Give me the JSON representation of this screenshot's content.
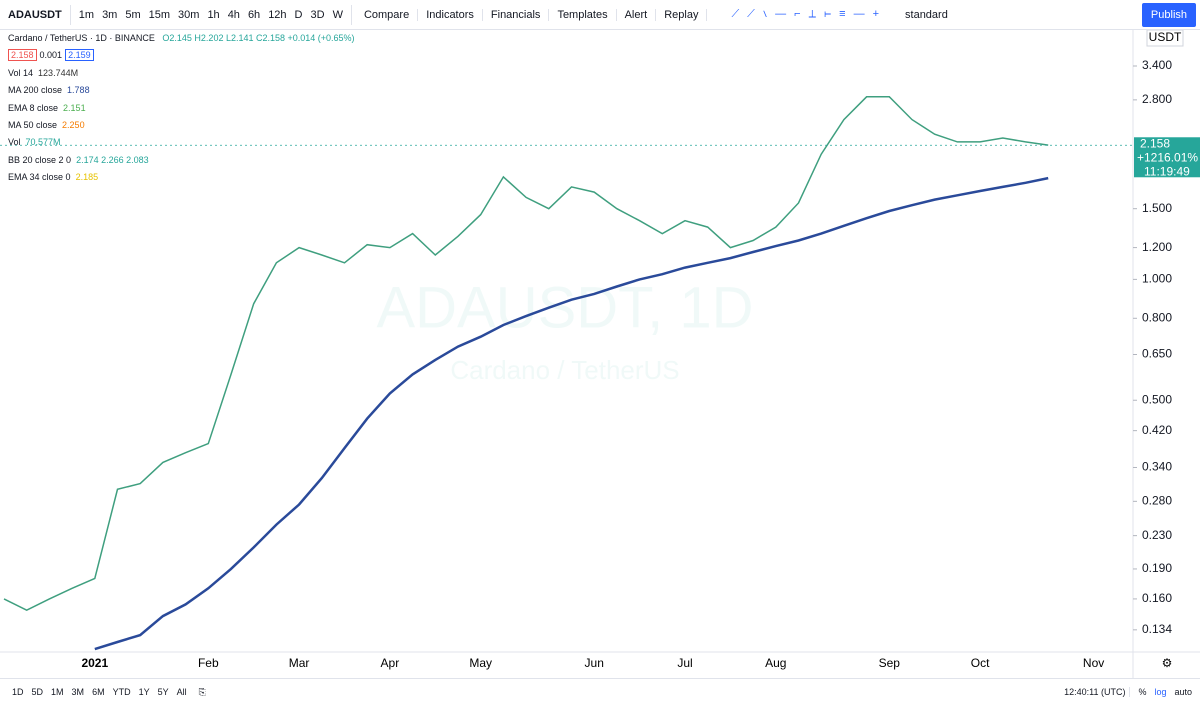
{
  "toolbar": {
    "symbol": "ADAUSDT",
    "intervals": [
      "1m",
      "3m",
      "5m",
      "15m",
      "30m",
      "1h",
      "4h",
      "6h",
      "12h",
      "D",
      "3D",
      "W"
    ],
    "buttons": [
      "Compare",
      "Indicators",
      "Financials",
      "Templates",
      "Alert",
      "Replay"
    ],
    "layout": "standard",
    "publish": "Publish"
  },
  "legend": {
    "title": "Cardano / TetherUS · 1D · BINANCE",
    "ohlc": "O2.145 H2.202 L2.141 C2.158 +0.014 (+0.65%)",
    "bid": "2.158",
    "spread": "0.001",
    "ask": "2.159",
    "indicators": [
      {
        "name": "Vol 14",
        "value": "123.744M",
        "color": "#333333"
      },
      {
        "name": "MA 200 close",
        "value": "1.788",
        "color": "#2a4a9a"
      },
      {
        "name": "EMA 8 close",
        "value": "2.151",
        "color": "#4caf50"
      },
      {
        "name": "MA 50 close",
        "value": "2.250",
        "color": "#f57c00"
      },
      {
        "name": "Vol",
        "value": "70.577M",
        "color": "#26a69a"
      },
      {
        "name": "BB 20 close 2 0",
        "value": "2.174 2.266 2.083",
        "color": "#26a69a"
      },
      {
        "name": "EMA 34 close 0",
        "value": "2.185",
        "color": "#e6c200"
      }
    ]
  },
  "watermark": {
    "symbol": "ADAUSDT, 1D",
    "description": "Cardano / TetherUS"
  },
  "chart_data": {
    "type": "line",
    "log_scale": true,
    "grid": false,
    "currency": "USDT",
    "categories": [
      null,
      null,
      null,
      null,
      "2021",
      null,
      null,
      null,
      null,
      "Feb",
      null,
      null,
      null,
      "Mar",
      null,
      null,
      null,
      "Apr",
      null,
      null,
      null,
      "May",
      null,
      null,
      null,
      null,
      "Jun",
      null,
      null,
      null,
      "Jul",
      null,
      null,
      null,
      "Aug",
      null,
      null,
      null,
      null,
      "Sep",
      null,
      null,
      null,
      "Oct",
      null,
      null,
      null,
      null,
      "Nov"
    ],
    "series": [
      {
        "name": "ADAUSDT",
        "color": "#3f9f7f",
        "values": [
          0.16,
          0.15,
          0.16,
          0.17,
          0.18,
          0.3,
          0.31,
          0.35,
          0.37,
          0.39,
          0.58,
          0.87,
          1.1,
          1.2,
          1.15,
          1.1,
          1.22,
          1.2,
          1.3,
          1.15,
          1.28,
          1.45,
          1.8,
          1.6,
          1.5,
          1.7,
          1.65,
          1.5,
          1.4,
          1.3,
          1.4,
          1.35,
          1.2,
          1.25,
          1.35,
          1.55,
          2.05,
          2.5,
          2.85,
          2.85,
          2.5,
          2.3,
          2.2,
          2.2,
          2.25,
          2.2,
          2.16,
          null,
          null
        ]
      },
      {
        "name": "MA 200 close",
        "color": "#2a4a9a",
        "values": [
          null,
          null,
          null,
          null,
          0.12,
          0.125,
          0.13,
          0.145,
          0.155,
          0.17,
          0.19,
          0.215,
          0.245,
          0.275,
          0.32,
          0.38,
          0.45,
          0.52,
          0.58,
          0.63,
          0.68,
          0.72,
          0.77,
          0.81,
          0.85,
          0.89,
          0.92,
          0.96,
          1.0,
          1.03,
          1.07,
          1.1,
          1.13,
          1.17,
          1.21,
          1.25,
          1.3,
          1.36,
          1.42,
          1.48,
          1.53,
          1.58,
          1.62,
          1.66,
          1.7,
          1.74,
          1.788,
          null,
          null
        ]
      }
    ],
    "ylim": [
      0.118,
      4.18
    ],
    "yticks": [
      {
        "value": 3.4,
        "label": "3.400"
      },
      {
        "value": 2.8,
        "label": "2.800"
      },
      {
        "value": 1.5,
        "label": "1.500"
      },
      {
        "value": 1.2,
        "label": "1.200"
      },
      {
        "value": 1.0,
        "label": "1.000"
      },
      {
        "value": 0.8,
        "label": "0.800"
      },
      {
        "value": 0.65,
        "label": "0.650"
      },
      {
        "value": 0.5,
        "label": "0.500"
      },
      {
        "value": 0.42,
        "label": "0.420"
      },
      {
        "value": 0.34,
        "label": "0.340"
      },
      {
        "value": 0.28,
        "label": "0.280"
      },
      {
        "value": 0.23,
        "label": "0.230"
      },
      {
        "value": 0.19,
        "label": "0.190"
      },
      {
        "value": 0.16,
        "label": "0.160"
      },
      {
        "value": 0.134,
        "label": "0.134"
      }
    ],
    "last_price": 2.158,
    "change": "+1216.01%",
    "countdown": "11:19:49"
  },
  "bottom_bar": {
    "ranges": [
      "1D",
      "5D",
      "1M",
      "3M",
      "6M",
      "YTD",
      "1Y",
      "5Y",
      "All"
    ],
    "clock": "12:40:11 (UTC)",
    "toggles": [
      "%",
      "log",
      "auto"
    ]
  }
}
